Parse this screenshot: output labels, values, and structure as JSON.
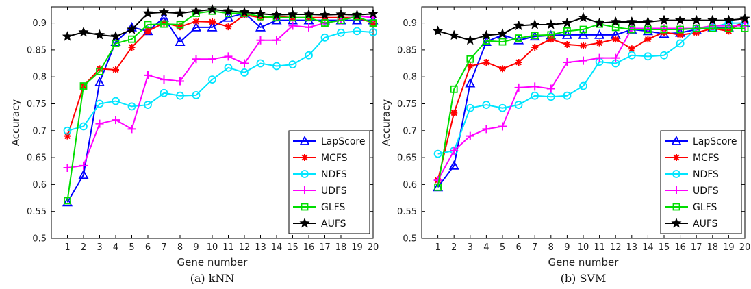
{
  "chart_data": [
    {
      "type": "line",
      "caption": "(a) kNN",
      "xlabel": "Gene number",
      "ylabel": "Accuracy",
      "x": [
        1,
        2,
        3,
        4,
        5,
        6,
        7,
        8,
        9,
        10,
        11,
        12,
        13,
        14,
        15,
        16,
        17,
        18,
        19,
        20
      ],
      "xlim": [
        0,
        20
      ],
      "ylim": [
        0.5,
        0.93
      ],
      "yticks": [
        "0.5",
        "0.55",
        "0.6",
        "0.65",
        "0.7",
        "0.75",
        "0.8",
        "0.85",
        "0.9"
      ],
      "legend_position": "bottom-right",
      "grid": false,
      "series": [
        {
          "name": "LapScore",
          "color": "#0000ff",
          "marker": "triangle",
          "values": [
            0.567,
            0.618,
            0.79,
            0.865,
            0.892,
            0.885,
            0.91,
            0.865,
            0.892,
            0.892,
            0.91,
            0.918,
            0.892,
            0.905,
            0.905,
            0.905,
            0.905,
            0.905,
            0.905,
            0.905
          ]
        },
        {
          "name": "MCFS",
          "color": "#ff0000",
          "marker": "asterisk",
          "values": [
            0.69,
            0.783,
            0.815,
            0.813,
            0.855,
            0.885,
            0.9,
            0.893,
            0.903,
            0.902,
            0.893,
            0.915,
            0.91,
            0.912,
            0.91,
            0.91,
            0.91,
            0.91,
            0.91,
            0.9
          ]
        },
        {
          "name": "NDFS",
          "color": "#00e5ff",
          "marker": "circle",
          "values": [
            0.7,
            0.708,
            0.75,
            0.755,
            0.745,
            0.748,
            0.77,
            0.765,
            0.766,
            0.795,
            0.817,
            0.808,
            0.825,
            0.82,
            0.823,
            0.84,
            0.873,
            0.882,
            0.885,
            0.883
          ]
        },
        {
          "name": "UDFS",
          "color": "#ff00ff",
          "marker": "plus",
          "values": [
            0.631,
            0.635,
            0.713,
            0.72,
            0.703,
            0.803,
            0.795,
            0.792,
            0.833,
            0.833,
            0.838,
            0.825,
            0.868,
            0.868,
            0.895,
            0.892,
            0.9,
            0.905,
            0.913,
            0.91
          ]
        },
        {
          "name": "GLFS",
          "color": "#00dd00",
          "marker": "square",
          "values": [
            0.57,
            0.783,
            0.81,
            0.862,
            0.87,
            0.897,
            0.898,
            0.897,
            0.918,
            0.922,
            0.918,
            0.918,
            0.912,
            0.91,
            0.91,
            0.91,
            0.9,
            0.905,
            0.912,
            0.9
          ]
        },
        {
          "name": "AUFS",
          "color": "#000000",
          "marker": "star",
          "values": [
            0.875,
            0.883,
            0.878,
            0.875,
            0.888,
            0.918,
            0.92,
            0.918,
            0.922,
            0.925,
            0.922,
            0.92,
            0.917,
            0.915,
            0.916,
            0.916,
            0.915,
            0.916,
            0.915,
            0.917
          ]
        }
      ]
    },
    {
      "type": "line",
      "caption": "(b) SVM",
      "xlabel": "Gene number",
      "ylabel": "Accuracy",
      "x": [
        1,
        2,
        3,
        4,
        5,
        6,
        7,
        8,
        9,
        10,
        11,
        12,
        13,
        14,
        15,
        16,
        17,
        18,
        19,
        20
      ],
      "xlim": [
        0,
        20
      ],
      "ylim": [
        0.5,
        0.93
      ],
      "yticks": [
        "0.5",
        "0.55",
        "0.6",
        "0.65",
        "0.7",
        "0.75",
        "0.8",
        "0.85",
        "0.9"
      ],
      "legend_position": "bottom-right",
      "grid": false,
      "series": [
        {
          "name": "LapScore",
          "color": "#0000ff",
          "marker": "triangle",
          "values": [
            0.595,
            0.635,
            0.788,
            0.865,
            0.878,
            0.868,
            0.875,
            0.877,
            0.878,
            0.878,
            0.878,
            0.878,
            0.888,
            0.885,
            0.88,
            0.882,
            0.888,
            0.892,
            0.892,
            0.9
          ]
        },
        {
          "name": "MCFS",
          "color": "#ff0000",
          "marker": "asterisk",
          "values": [
            0.608,
            0.733,
            0.82,
            0.827,
            0.815,
            0.827,
            0.855,
            0.87,
            0.86,
            0.858,
            0.863,
            0.87,
            0.852,
            0.87,
            0.883,
            0.878,
            0.882,
            0.89,
            0.885,
            0.905
          ]
        },
        {
          "name": "NDFS",
          "color": "#00e5ff",
          "marker": "circle",
          "values": [
            0.657,
            0.663,
            0.742,
            0.748,
            0.742,
            0.748,
            0.765,
            0.763,
            0.765,
            0.783,
            0.828,
            0.825,
            0.84,
            0.838,
            0.84,
            0.862,
            0.89,
            0.892,
            0.9,
            0.9
          ]
        },
        {
          "name": "UDFS",
          "color": "#ff00ff",
          "marker": "plus",
          "values": [
            0.608,
            0.663,
            0.69,
            0.703,
            0.708,
            0.78,
            0.782,
            0.778,
            0.827,
            0.83,
            0.835,
            0.835,
            0.89,
            0.89,
            0.89,
            0.89,
            0.89,
            0.895,
            0.895,
            0.895
          ]
        },
        {
          "name": "GLFS",
          "color": "#00dd00",
          "marker": "square",
          "values": [
            0.595,
            0.777,
            0.833,
            0.867,
            0.865,
            0.872,
            0.877,
            0.878,
            0.885,
            0.888,
            0.898,
            0.892,
            0.888,
            0.888,
            0.888,
            0.888,
            0.89,
            0.89,
            0.89,
            0.89
          ]
        },
        {
          "name": "AUFS",
          "color": "#000000",
          "marker": "star",
          "values": [
            0.885,
            0.877,
            0.868,
            0.877,
            0.88,
            0.895,
            0.897,
            0.897,
            0.9,
            0.91,
            0.9,
            0.902,
            0.902,
            0.902,
            0.905,
            0.905,
            0.905,
            0.905,
            0.905,
            0.908
          ]
        }
      ]
    }
  ]
}
